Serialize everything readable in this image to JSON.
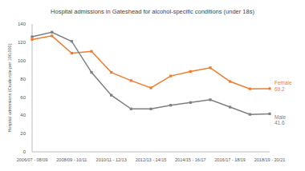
{
  "chart_data": {
    "type": "line",
    "title": "Hospital admissions in Gateshead for alcohol-specific conditions (under 18s)",
    "y_label": "Hospital admissions (Crude rate per 100,000)",
    "categories": [
      "2006/07 - 08/09",
      null,
      "2008/09 - 10/11",
      null,
      "2010/11 - 12/13",
      null,
      "2012/13 - 14/15",
      null,
      "2014/15 - 16/17",
      null,
      "2016/17 - 18/19",
      null,
      "2018/19 - 20/21"
    ],
    "series": [
      {
        "name": "Female",
        "color": "#ed7d31",
        "marker": "square",
        "values": [
          123,
          127,
          108,
          110,
          87,
          78,
          70,
          83,
          88,
          92,
          77,
          69,
          69.2
        ]
      },
      {
        "name": "Male",
        "color": "#7f7f7f",
        "marker": "square",
        "values": [
          126,
          131,
          121,
          87,
          62,
          47,
          47,
          51,
          54,
          57,
          49,
          41,
          41.6
        ]
      }
    ],
    "ylim": [
      0,
      140
    ],
    "yticks": [
      0,
      20,
      40,
      60,
      80,
      100,
      120,
      140
    ],
    "grid": false
  }
}
